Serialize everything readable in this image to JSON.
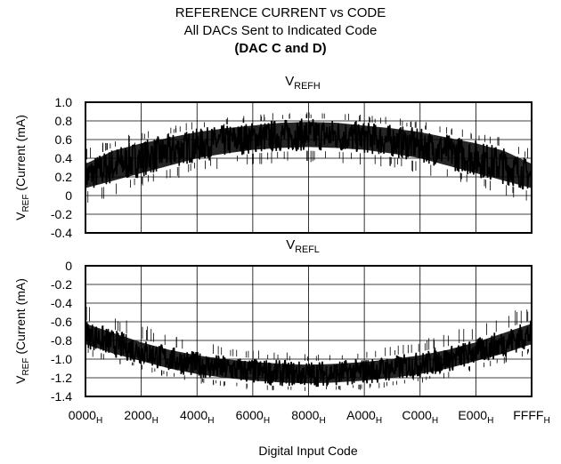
{
  "header": {
    "title": "REFERENCE CURRENT vs CODE",
    "subtitle": "All DACs Sent to Indicated Code",
    "note": "(DAC C and D)"
  },
  "chart_data": [
    {
      "type": "line",
      "title": {
        "main": "V",
        "sub": "REFH"
      },
      "ylabel": {
        "main": "V",
        "sub": "REF",
        "rest": " (Current (mA)"
      },
      "ylim": [
        -0.4,
        1.0
      ],
      "yticks": [
        "1.0",
        "0.8",
        "0.6",
        "0.4",
        "0.2",
        "0",
        "-0.2",
        "-0.4"
      ],
      "grid": true,
      "series": [
        {
          "x": [
            "0000",
            "1000",
            "2000",
            "3000",
            "4000",
            "5000",
            "6000",
            "7000",
            "8000",
            "9000",
            "A000",
            "B000",
            "C000",
            "D000",
            "E000",
            "F000",
            "FFFF"
          ],
          "upper": [
            0.38,
            0.52,
            0.6,
            0.66,
            0.72,
            0.76,
            0.79,
            0.82,
            0.83,
            0.82,
            0.79,
            0.76,
            0.72,
            0.66,
            0.6,
            0.52,
            0.38
          ],
          "lower": [
            0.04,
            0.12,
            0.2,
            0.28,
            0.36,
            0.41,
            0.45,
            0.47,
            0.48,
            0.47,
            0.45,
            0.41,
            0.36,
            0.28,
            0.2,
            0.12,
            0.04
          ],
          "spike_min": [
            -0.1,
            0.0,
            0.08,
            0.16,
            0.24,
            0.3,
            0.32,
            0.34,
            0.35,
            0.34,
            0.32,
            0.3,
            0.24,
            0.16,
            0.08,
            0.0,
            -0.1
          ],
          "spike_max": [
            0.5,
            0.62,
            0.68,
            0.74,
            0.8,
            0.84,
            0.87,
            0.89,
            0.9,
            0.89,
            0.87,
            0.84,
            0.8,
            0.74,
            0.68,
            0.62,
            0.5
          ]
        }
      ]
    },
    {
      "type": "line",
      "title": {
        "main": "V",
        "sub": "REFL"
      },
      "ylabel": {
        "main": "V",
        "sub": "REF",
        "rest": " (Current (mA)"
      },
      "ylim": [
        -1.4,
        0
      ],
      "yticks": [
        "0",
        "-0.2",
        "-0.4",
        "-0.6",
        "-0.8",
        "-1.0",
        "-1.2",
        "-1.4"
      ],
      "grid": true,
      "series": [
        {
          "x": [
            "0000",
            "1000",
            "2000",
            "3000",
            "4000",
            "5000",
            "6000",
            "7000",
            "8000",
            "9000",
            "A000",
            "B000",
            "C000",
            "D000",
            "E000",
            "F000",
            "FFFF"
          ],
          "upper": [
            -0.58,
            -0.68,
            -0.78,
            -0.86,
            -0.92,
            -0.96,
            -0.99,
            -1.01,
            -1.02,
            -1.01,
            -0.99,
            -0.96,
            -0.92,
            -0.86,
            -0.78,
            -0.68,
            -0.58
          ],
          "lower": [
            -0.88,
            -0.98,
            -1.06,
            -1.14,
            -1.2,
            -1.24,
            -1.27,
            -1.29,
            -1.3,
            -1.29,
            -1.27,
            -1.24,
            -1.2,
            -1.14,
            -1.06,
            -0.98,
            -0.88
          ],
          "spike_min": [
            -0.95,
            -1.05,
            -1.12,
            -1.2,
            -1.26,
            -1.3,
            -1.33,
            -1.34,
            -1.35,
            -1.34,
            -1.33,
            -1.3,
            -1.26,
            -1.2,
            -1.12,
            -1.05,
            -0.95
          ],
          "spike_max": [
            -0.38,
            -0.5,
            -0.62,
            -0.72,
            -0.8,
            -0.86,
            -0.9,
            -0.92,
            -0.93,
            -0.92,
            -0.9,
            -0.86,
            -0.8,
            -0.72,
            -0.62,
            -0.5,
            -0.38
          ]
        }
      ]
    }
  ],
  "x_axis": {
    "ticks": [
      {
        "main": "0000",
        "sub": "H"
      },
      {
        "main": "2000",
        "sub": "H"
      },
      {
        "main": "4000",
        "sub": "H"
      },
      {
        "main": "6000",
        "sub": "H"
      },
      {
        "main": "8000",
        "sub": "H"
      },
      {
        "main": "A000",
        "sub": "H"
      },
      {
        "main": "C000",
        "sub": "H"
      },
      {
        "main": "E000",
        "sub": "H"
      },
      {
        "main": "FFFF",
        "sub": "H"
      }
    ],
    "label": "Digital Input Code"
  },
  "colors": {
    "trace": "#000000",
    "grid": "#000000",
    "background": "#ffffff"
  }
}
